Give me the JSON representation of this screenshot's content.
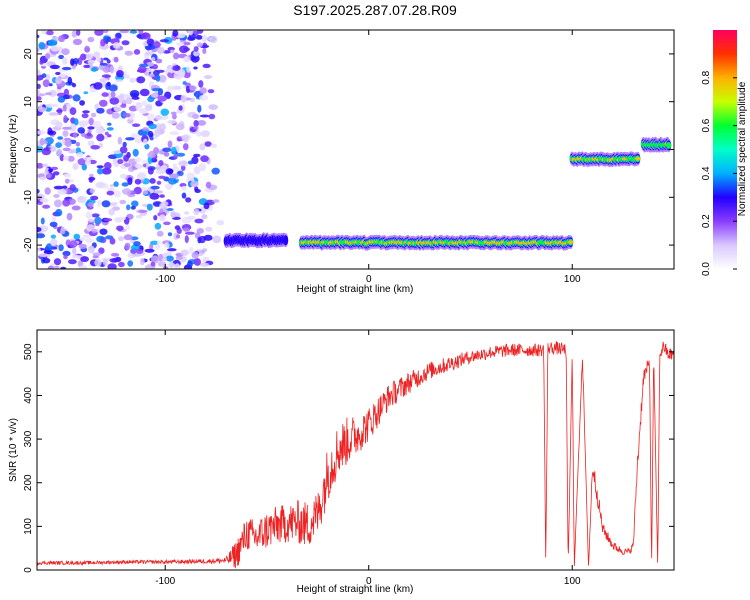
{
  "figure": {
    "title": "S197.2025.287.07.28.R09"
  },
  "chart_data": [
    {
      "type": "heatmap",
      "xlabel": "Height of straight line (km)",
      "ylabel": "Frequency (Hz)",
      "xlim": [
        -163,
        150
      ],
      "ylim": [
        -25,
        25
      ],
      "xticks": [
        -100,
        0,
        100
      ],
      "yticks": [
        -20,
        -10,
        0,
        10,
        20
      ],
      "grid": false,
      "colorbar": {
        "label": "Normalized spectral amplitude",
        "range": [
          0.0,
          1.0
        ],
        "ticks": [
          0.0,
          0.2,
          0.4,
          0.6,
          0.8
        ],
        "tick_labels": [
          "0.0",
          "0.2",
          "0.4",
          "0.6",
          "0.8"
        ],
        "colormap": [
          "#ffffff",
          "#d9c8ff",
          "#8a3cff",
          "#2000ff",
          "#00b0ff",
          "#00ffc8",
          "#00ff30",
          "#c8ff00",
          "#ffb000",
          "#ff3000",
          "#ff0060"
        ]
      },
      "features": [
        {
          "kind": "noise",
          "x_range": [
            -163,
            -72
          ],
          "y_range": [
            -25,
            25
          ],
          "amplitude": 0.25
        },
        {
          "kind": "ridge",
          "x_range": [
            -70,
            -40
          ],
          "y": -19,
          "amplitude": 0.45
        },
        {
          "kind": "ridge",
          "x_range": [
            -33,
            100
          ],
          "y": -19.5,
          "amplitude": 0.95
        },
        {
          "kind": "ridge",
          "x_range": [
            100,
            133
          ],
          "y": -2,
          "amplitude": 0.9
        },
        {
          "kind": "ridge",
          "x_range": [
            135,
            148
          ],
          "y": 1,
          "amplitude": 0.8
        }
      ]
    },
    {
      "type": "line",
      "xlabel": "Height of straight line (km)",
      "ylabel": "SNR (10 * v/v)",
      "xlim": [
        -163,
        150
      ],
      "ylim": [
        0,
        550
      ],
      "xticks": [
        -100,
        0,
        100
      ],
      "yticks": [
        0,
        100,
        200,
        300,
        400,
        500
      ],
      "grid": false,
      "series": [
        {
          "color": "#ee2222",
          "x": [
            -163,
            -140,
            -120,
            -100,
            -80,
            -70,
            -65,
            -60,
            -55,
            -50,
            -45,
            -40,
            -35,
            -30,
            -25,
            -20,
            -15,
            -10,
            -5,
            0,
            5,
            10,
            20,
            30,
            40,
            50,
            60,
            70,
            80,
            86,
            87,
            88,
            92,
            97,
            98,
            100,
            101,
            105,
            108,
            110,
            115,
            120,
            125,
            128,
            130,
            132,
            135,
            138,
            139,
            140,
            142,
            143,
            145,
            147,
            150
          ],
          "y": [
            18,
            18,
            20,
            20,
            22,
            25,
            50,
            100,
            90,
            110,
            120,
            125,
            130,
            125,
            150,
            250,
            300,
            320,
            330,
            350,
            380,
            410,
            440,
            465,
            480,
            495,
            505,
            510,
            510,
            510,
            5,
            515,
            515,
            510,
            5,
            500,
            5,
            500,
            5,
            250,
            100,
            60,
            45,
            45,
            60,
            250,
            450,
            480,
            5,
            500,
            5,
            500,
            520,
            500,
            500
          ],
          "noise_amplitude": [
            8,
            8,
            8,
            8,
            10,
            15,
            70,
            80,
            80,
            90,
            90,
            90,
            100,
            110,
            110,
            130,
            120,
            110,
            90,
            80,
            70,
            60,
            50,
            40,
            35,
            30,
            30,
            30,
            30,
            30,
            0,
            30,
            30,
            30,
            0,
            30,
            0,
            30,
            0,
            50,
            30,
            20,
            15,
            15,
            20,
            50,
            40,
            30,
            0,
            30,
            0,
            30,
            30,
            30,
            30
          ]
        }
      ]
    }
  ]
}
